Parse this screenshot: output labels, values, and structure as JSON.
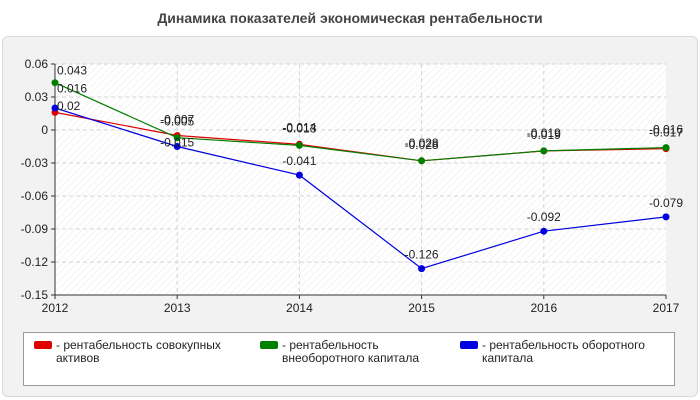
{
  "chart_data": {
    "type": "line",
    "title": "Динамика показателей экономическая рентабельности",
    "categories": [
      "2012",
      "2013",
      "2014",
      "2015",
      "2016",
      "2017"
    ],
    "ylim": [
      -0.15,
      0.06
    ],
    "yticks": [
      "0.06",
      "0.03",
      "0",
      "-0.03",
      "-0.06",
      "-0.09",
      "-0.12",
      "-0.15"
    ],
    "grid": true,
    "legend_position": "bottom",
    "series": [
      {
        "name": "- рентабельность совокупных активов",
        "color": "#e00000",
        "values": [
          0.016,
          -0.005,
          -0.013,
          -0.028,
          -0.019,
          -0.017
        ],
        "labels": [
          "0.016",
          "-0.005",
          "-0.013",
          "-0.028",
          "-0.019",
          "-0.017"
        ]
      },
      {
        "name": "- рентабельность внеоборотного капитала",
        "color": "#008000",
        "values": [
          0.043,
          -0.007,
          -0.014,
          -0.028,
          -0.019,
          -0.016
        ],
        "labels": [
          "0.043",
          "-0.007",
          "-0.014",
          "-0.028",
          "-0.019",
          "-0.016"
        ]
      },
      {
        "name": "- рентабельность оборотного капитала",
        "color": "#0000e0",
        "values": [
          0.02,
          -0.015,
          -0.041,
          -0.126,
          -0.092,
          -0.079
        ],
        "labels": [
          "0.02",
          "-0.015",
          "-0.041",
          "-0.126",
          "-0.092",
          "-0.079"
        ]
      }
    ]
  }
}
